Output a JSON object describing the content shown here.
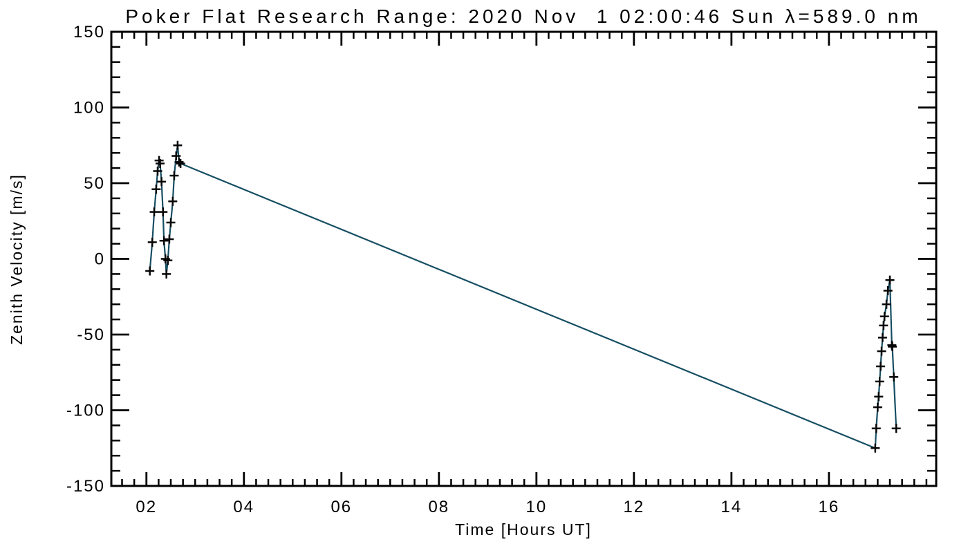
{
  "window": {
    "background": "#ffffff"
  },
  "chart_data": {
    "type": "line",
    "title": "Poker Flat Research Range: 2020 Nov  1 02:00:46 Sun λ=589.0 nm",
    "xlabel": "Time [Hours UT]",
    "ylabel": "Zenith Velocity [m/s]",
    "xlim": [
      1.28,
      18.2
    ],
    "ylim": [
      -150,
      150
    ],
    "x_major_ticks": [
      2,
      4,
      6,
      8,
      10,
      12,
      14,
      16
    ],
    "x_tick_labels": [
      "02",
      "04",
      "06",
      "08",
      "10",
      "12",
      "14",
      "16"
    ],
    "x_minor_step": 0.25,
    "y_major_ticks": [
      -150,
      -100,
      -50,
      0,
      50,
      100,
      150
    ],
    "y_tick_labels": [
      "-150",
      "-100",
      "-50",
      "0",
      "50",
      "100",
      "150"
    ],
    "y_minor_step": 10,
    "grid": false,
    "legend": null,
    "marker": "plus",
    "line_color": "#164e63",
    "marker_color": "#060606",
    "frame_color": "#000000",
    "series": [
      {
        "name": "zenith_velocity",
        "points": [
          [
            2.07,
            -8
          ],
          [
            2.12,
            11
          ],
          [
            2.16,
            31
          ],
          [
            2.2,
            46
          ],
          [
            2.23,
            58
          ],
          [
            2.26,
            65
          ],
          [
            2.28,
            63
          ],
          [
            2.31,
            51
          ],
          [
            2.34,
            31
          ],
          [
            2.36,
            12
          ],
          [
            2.39,
            0
          ],
          [
            2.41,
            -10
          ],
          [
            2.44,
            -1
          ],
          [
            2.47,
            13
          ],
          [
            2.5,
            24
          ],
          [
            2.54,
            38
          ],
          [
            2.57,
            55
          ],
          [
            2.61,
            68
          ],
          [
            2.64,
            75
          ],
          [
            2.67,
            64
          ],
          [
            2.7,
            63
          ],
          [
            16.95,
            -125
          ],
          [
            16.97,
            -112
          ],
          [
            17.0,
            -98
          ],
          [
            17.02,
            -91
          ],
          [
            17.04,
            -81
          ],
          [
            17.06,
            -71
          ],
          [
            17.08,
            -61
          ],
          [
            17.1,
            -52
          ],
          [
            17.12,
            -44
          ],
          [
            17.14,
            -38
          ],
          [
            17.18,
            -30
          ],
          [
            17.21,
            -21
          ],
          [
            17.25,
            -14
          ],
          [
            17.29,
            -57
          ],
          [
            17.3,
            -58
          ],
          [
            17.33,
            -78
          ],
          [
            17.38,
            -112
          ]
        ]
      }
    ]
  }
}
